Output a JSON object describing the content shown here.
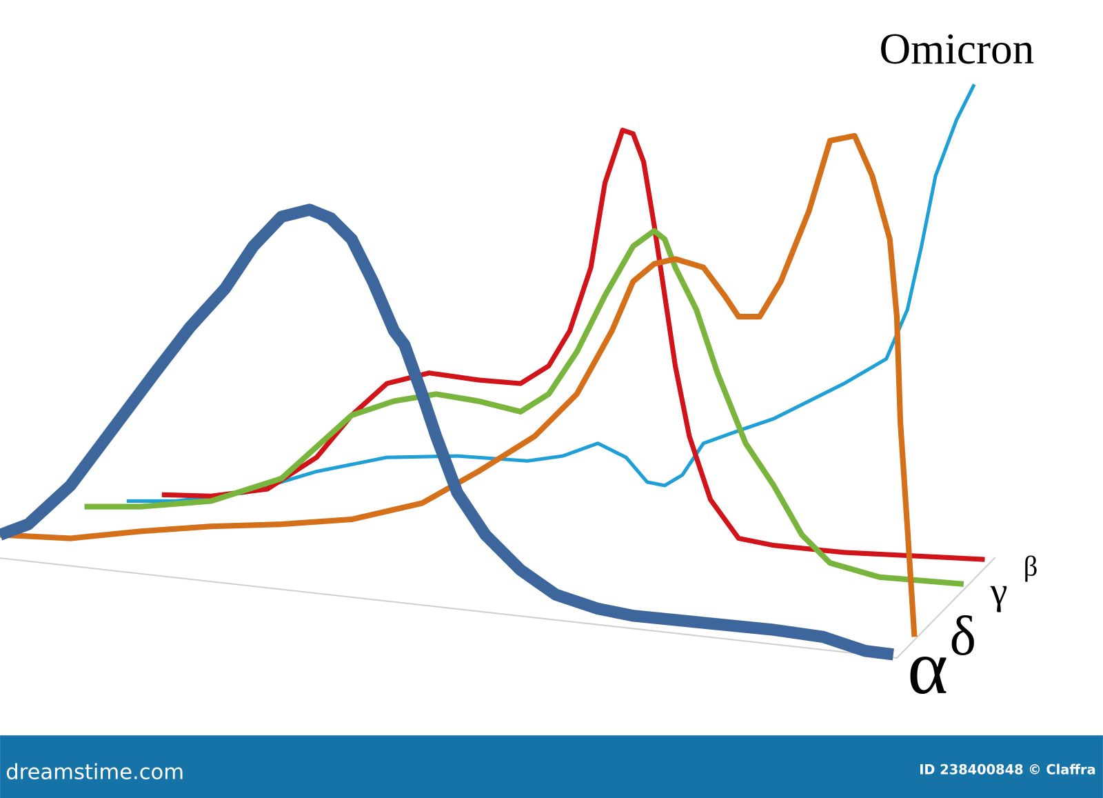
{
  "title": "Omicron",
  "variant_labels": [
    "α",
    "δ",
    "γ",
    "β"
  ],
  "footer": {
    "brand": "dreamstime.com",
    "credit": "ID 238400848 © Claffra"
  }
}
